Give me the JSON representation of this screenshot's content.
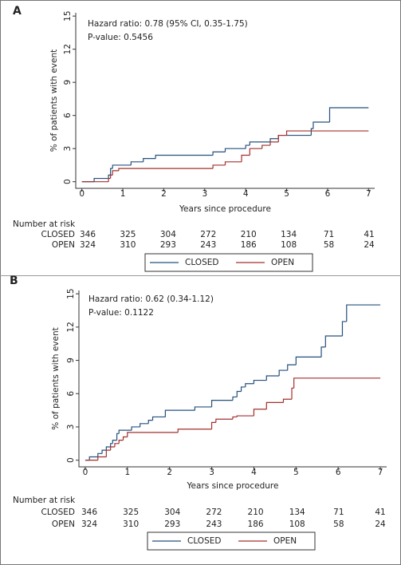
{
  "chart_data": [
    {
      "type": "step",
      "label": "A",
      "annotations": [
        "Hazard ratio: 0.78 (95% CI, 0.35-1.75)",
        "P-value: 0.5456"
      ],
      "x_label": "Years since procedure",
      "y_label": "% of patients with event",
      "xlim": [
        -0.15,
        7.15
      ],
      "ylim": [
        -0.6,
        15.3
      ],
      "xticks": [
        0,
        1,
        2,
        3,
        4,
        5,
        6,
        7
      ],
      "yticks": [
        0,
        3,
        6,
        9,
        12,
        15
      ],
      "series": [
        {
          "name": "CLOSED",
          "color": "#24507e",
          "x": [
            0,
            0.3,
            0.65,
            0.7,
            0.75,
            1.2,
            1.5,
            1.8,
            3.2,
            3.5,
            4.0,
            4.1,
            4.6,
            4.8,
            5.6,
            5.65,
            6.05,
            7
          ],
          "values": [
            0,
            0.3,
            0.6,
            1.2,
            1.5,
            1.8,
            2.1,
            2.4,
            2.7,
            3.0,
            3.3,
            3.6,
            3.9,
            4.2,
            4.8,
            5.4,
            6.7,
            6.7
          ]
        },
        {
          "name": "OPEN",
          "color": "#a3302c",
          "x": [
            0,
            0.65,
            0.7,
            0.75,
            0.9,
            3.2,
            3.5,
            3.9,
            4.1,
            4.4,
            4.6,
            4.8,
            5.0,
            7
          ],
          "values": [
            0,
            0.3,
            0.6,
            1.0,
            1.2,
            1.5,
            1.8,
            2.4,
            3.0,
            3.3,
            3.6,
            4.2,
            4.6,
            4.6
          ]
        }
      ],
      "risk_table": {
        "title": "Number at risk",
        "rows": [
          {
            "name": "CLOSED",
            "values": [
              346,
              325,
              304,
              272,
              210,
              134,
              71,
              41
            ]
          },
          {
            "name": "OPEN",
            "values": [
              324,
              310,
              293,
              243,
              186,
              108,
              58,
              24
            ]
          }
        ]
      }
    },
    {
      "type": "step",
      "label": "B",
      "annotations": [
        "Hazard ratio: 0.62 (0.34-1.12)",
        "P-value: 0.1122"
      ],
      "x_label": "Years since procedure",
      "y_label": "% of patients with event",
      "xlim": [
        -0.15,
        7.15
      ],
      "ylim": [
        -0.6,
        15.3
      ],
      "xticks": [
        0,
        1,
        2,
        3,
        4,
        5,
        6,
        7
      ],
      "yticks": [
        0,
        3,
        6,
        9,
        12,
        15
      ],
      "series": [
        {
          "name": "CLOSED",
          "color": "#24507e",
          "x": [
            0,
            0.1,
            0.3,
            0.4,
            0.5,
            0.6,
            0.65,
            0.75,
            0.8,
            1.1,
            1.3,
            1.5,
            1.6,
            1.9,
            2.6,
            3.0,
            3.5,
            3.6,
            3.7,
            3.8,
            4.0,
            4.3,
            4.6,
            4.8,
            5.0,
            5.6,
            5.7,
            6.1,
            6.2,
            7
          ],
          "values": [
            0,
            0.3,
            0.6,
            0.9,
            1.2,
            1.5,
            1.8,
            2.4,
            2.7,
            3.0,
            3.3,
            3.6,
            3.9,
            4.5,
            4.8,
            5.4,
            5.7,
            6.2,
            6.6,
            6.9,
            7.2,
            7.6,
            8.1,
            8.6,
            9.3,
            10.2,
            11.2,
            12.5,
            14.0,
            14.0
          ]
        },
        {
          "name": "OPEN",
          "color": "#a3302c",
          "x": [
            0,
            0.3,
            0.5,
            0.6,
            0.7,
            0.8,
            0.9,
            1.0,
            2.2,
            3.0,
            3.1,
            3.5,
            3.6,
            4.0,
            4.3,
            4.7,
            4.9,
            4.95,
            7
          ],
          "values": [
            0,
            0.3,
            0.9,
            1.2,
            1.5,
            1.8,
            2.1,
            2.5,
            2.8,
            3.4,
            3.7,
            3.9,
            4.0,
            4.6,
            5.2,
            5.5,
            6.5,
            7.4,
            7.4
          ]
        }
      ],
      "risk_table": {
        "title": "Number at risk",
        "rows": [
          {
            "name": "CLOSED",
            "values": [
              346,
              325,
              304,
              272,
              210,
              134,
              71,
              41
            ]
          },
          {
            "name": "OPEN",
            "values": [
              324,
              310,
              293,
              243,
              186,
              108,
              58,
              24
            ]
          }
        ]
      }
    }
  ]
}
